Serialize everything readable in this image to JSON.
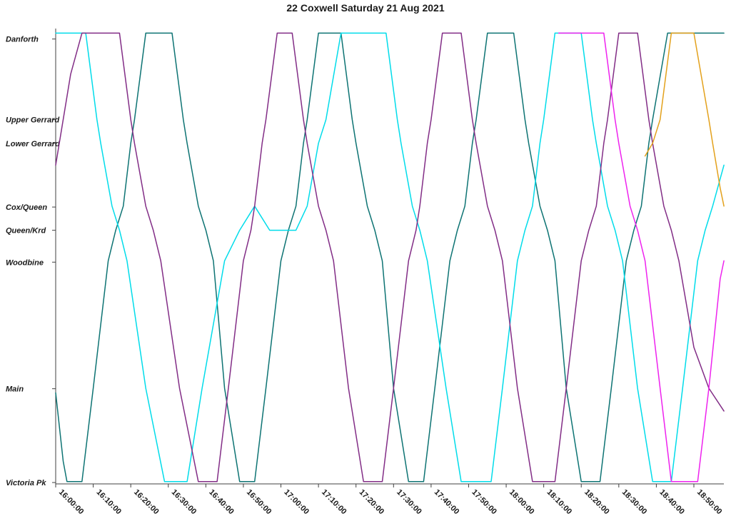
{
  "page": {
    "background": "#ffffff"
  },
  "chart_data": {
    "type": "line",
    "title": "22 Coxwell Saturday 21 Aug 2021",
    "title_color": "#1a1a1a",
    "grid": "off",
    "legend": "none",
    "x_axis": {
      "start_minutes": 0,
      "end_minutes": 178,
      "tick_interval_minutes": 10,
      "tick_labels": [
        "16:00:00",
        "16:10:00",
        "16:20:00",
        "16:30:00",
        "16:40:00",
        "16:50:00",
        "17:00:00",
        "17:10:00",
        "17:20:00",
        "17:30:00",
        "17:40:00",
        "17:50:00",
        "18:00:00",
        "18:10:00",
        "18:20:00",
        "18:30:00",
        "18:40:00",
        "18:50:00"
      ]
    },
    "y_axis": {
      "stations": [
        {
          "name": "Danforth",
          "pos": 0.977
        },
        {
          "name": "Upper Gerrard",
          "pos": 0.8
        },
        {
          "name": "Lower Gerrard",
          "pos": 0.748
        },
        {
          "name": "Cox/Queen",
          "pos": 0.608
        },
        {
          "name": "Queen/Krd",
          "pos": 0.557
        },
        {
          "name": "Woodbine",
          "pos": 0.487
        },
        {
          "name": "Main",
          "pos": 0.209
        },
        {
          "name": "Victoria Pk",
          "pos": 0.003
        }
      ]
    },
    "series": [
      {
        "name": "run-teal",
        "color": "#0d7373",
        "points": [
          [
            0,
            0.2
          ],
          [
            2,
            0.05
          ],
          [
            3,
            0.005
          ],
          [
            7,
            0.005
          ],
          [
            10,
            0.21
          ],
          [
            14,
            0.49
          ],
          [
            16,
            0.557
          ],
          [
            18,
            0.61
          ],
          [
            20,
            0.748
          ],
          [
            21,
            0.8
          ],
          [
            24,
            0.99
          ],
          [
            31,
            0.99
          ],
          [
            34,
            0.8
          ],
          [
            35,
            0.748
          ],
          [
            38,
            0.61
          ],
          [
            40,
            0.557
          ],
          [
            42,
            0.49
          ],
          [
            45,
            0.21
          ],
          [
            49,
            0.005
          ],
          [
            53,
            0.005
          ],
          [
            56,
            0.21
          ],
          [
            60,
            0.49
          ],
          [
            62,
            0.557
          ],
          [
            64,
            0.61
          ],
          [
            66,
            0.748
          ],
          [
            67,
            0.8
          ],
          [
            70,
            0.99
          ],
          [
            76,
            0.99
          ],
          [
            79,
            0.8
          ],
          [
            80,
            0.748
          ],
          [
            83,
            0.61
          ],
          [
            85,
            0.557
          ],
          [
            87,
            0.49
          ],
          [
            90,
            0.21
          ],
          [
            94,
            0.005
          ],
          [
            98,
            0.005
          ],
          [
            101,
            0.21
          ],
          [
            105,
            0.49
          ],
          [
            107,
            0.557
          ],
          [
            109,
            0.61
          ],
          [
            111,
            0.748
          ],
          [
            112,
            0.8
          ],
          [
            115,
            0.99
          ],
          [
            122,
            0.99
          ],
          [
            125,
            0.8
          ],
          [
            126,
            0.748
          ],
          [
            129,
            0.61
          ],
          [
            131,
            0.557
          ],
          [
            133,
            0.49
          ],
          [
            136,
            0.21
          ],
          [
            140,
            0.005
          ],
          [
            145,
            0.005
          ],
          [
            148,
            0.21
          ],
          [
            152,
            0.49
          ],
          [
            154,
            0.557
          ],
          [
            156,
            0.61
          ],
          [
            158,
            0.748
          ],
          [
            159,
            0.8
          ],
          [
            163,
            0.99
          ],
          [
            178,
            0.99
          ]
        ]
      },
      {
        "name": "run-cyan",
        "color": "#00dcea",
        "points": [
          [
            0,
            0.99
          ],
          [
            8,
            0.99
          ],
          [
            11,
            0.8
          ],
          [
            12,
            0.748
          ],
          [
            15,
            0.61
          ],
          [
            17,
            0.557
          ],
          [
            19,
            0.49
          ],
          [
            24,
            0.21
          ],
          [
            29,
            0.005
          ],
          [
            35,
            0.005
          ],
          [
            39,
            0.21
          ],
          [
            45,
            0.49
          ],
          [
            49,
            0.557
          ],
          [
            53,
            0.61
          ],
          [
            57,
            0.557
          ],
          [
            64,
            0.557
          ],
          [
            67,
            0.61
          ],
          [
            70,
            0.748
          ],
          [
            72,
            0.8
          ],
          [
            76,
            0.99
          ],
          [
            88,
            0.99
          ],
          [
            91,
            0.8
          ],
          [
            92,
            0.748
          ],
          [
            95,
            0.61
          ],
          [
            97,
            0.557
          ],
          [
            99,
            0.49
          ],
          [
            104,
            0.21
          ],
          [
            108,
            0.005
          ],
          [
            116,
            0.005
          ],
          [
            119,
            0.21
          ],
          [
            123,
            0.49
          ],
          [
            125,
            0.557
          ],
          [
            127,
            0.61
          ],
          [
            129,
            0.748
          ],
          [
            130,
            0.8
          ],
          [
            133,
            0.99
          ],
          [
            140,
            0.99
          ],
          [
            143,
            0.8
          ],
          [
            144,
            0.748
          ],
          [
            147,
            0.61
          ],
          [
            149,
            0.557
          ],
          [
            151,
            0.49
          ],
          [
            155,
            0.21
          ],
          [
            159,
            0.005
          ],
          [
            164,
            0.005
          ],
          [
            167,
            0.21
          ],
          [
            171,
            0.49
          ],
          [
            173,
            0.557
          ],
          [
            175,
            0.61
          ],
          [
            178,
            0.7
          ]
        ]
      },
      {
        "name": "run-purple",
        "color": "#822d86",
        "points": [
          [
            0,
            0.7
          ],
          [
            2,
            0.8
          ],
          [
            4,
            0.9
          ],
          [
            7,
            0.99
          ],
          [
            17,
            0.99
          ],
          [
            20,
            0.8
          ],
          [
            21,
            0.748
          ],
          [
            24,
            0.61
          ],
          [
            26,
            0.557
          ],
          [
            28,
            0.49
          ],
          [
            33,
            0.21
          ],
          [
            38,
            0.005
          ],
          [
            43,
            0.005
          ],
          [
            46,
            0.21
          ],
          [
            50,
            0.49
          ],
          [
            52,
            0.557
          ],
          [
            53,
            0.61
          ],
          [
            55,
            0.748
          ],
          [
            56,
            0.8
          ],
          [
            59,
            0.99
          ],
          [
            63,
            0.99
          ],
          [
            66,
            0.8
          ],
          [
            67,
            0.748
          ],
          [
            70,
            0.61
          ],
          [
            72,
            0.557
          ],
          [
            74,
            0.49
          ],
          [
            78,
            0.21
          ],
          [
            82,
            0.005
          ],
          [
            87,
            0.005
          ],
          [
            90,
            0.21
          ],
          [
            94,
            0.49
          ],
          [
            96,
            0.557
          ],
          [
            97,
            0.61
          ],
          [
            99,
            0.748
          ],
          [
            100,
            0.8
          ],
          [
            103,
            0.99
          ],
          [
            108,
            0.99
          ],
          [
            111,
            0.8
          ],
          [
            112,
            0.748
          ],
          [
            115,
            0.61
          ],
          [
            117,
            0.557
          ],
          [
            119,
            0.49
          ],
          [
            123,
            0.21
          ],
          [
            127,
            0.005
          ],
          [
            133,
            0.005
          ],
          [
            136,
            0.21
          ],
          [
            140,
            0.49
          ],
          [
            142,
            0.557
          ],
          [
            144,
            0.61
          ],
          [
            146,
            0.748
          ],
          [
            147,
            0.8
          ],
          [
            150,
            0.99
          ],
          [
            155,
            0.99
          ],
          [
            158,
            0.8
          ],
          [
            159,
            0.748
          ],
          [
            162,
            0.61
          ],
          [
            164,
            0.557
          ],
          [
            166,
            0.49
          ],
          [
            170,
            0.3
          ],
          [
            174,
            0.21
          ],
          [
            178,
            0.16
          ]
        ]
      },
      {
        "name": "run-magenta",
        "color": "#ee22ee",
        "points": [
          [
            134,
            0.99
          ],
          [
            146,
            0.99
          ],
          [
            149,
            0.8
          ],
          [
            150,
            0.748
          ],
          [
            153,
            0.61
          ],
          [
            155,
            0.557
          ],
          [
            157,
            0.49
          ],
          [
            161,
            0.21
          ],
          [
            164,
            0.005
          ],
          [
            171,
            0.005
          ],
          [
            174,
            0.21
          ],
          [
            177,
            0.45
          ],
          [
            178,
            0.49
          ]
        ]
      },
      {
        "name": "run-orange",
        "color": "#e3a11c",
        "points": [
          [
            157,
            0.72
          ],
          [
            159,
            0.748
          ],
          [
            161,
            0.8
          ],
          [
            164,
            0.99
          ],
          [
            170,
            0.99
          ],
          [
            174,
            0.8
          ],
          [
            175,
            0.748
          ],
          [
            177,
            0.65
          ],
          [
            178,
            0.61
          ]
        ]
      }
    ]
  }
}
